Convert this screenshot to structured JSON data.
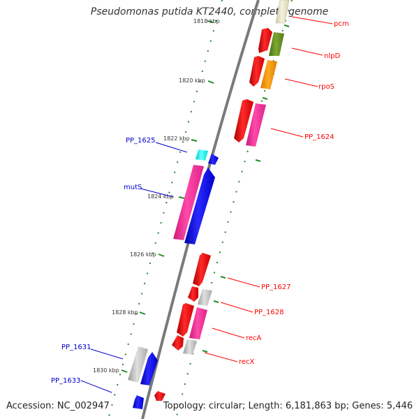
{
  "title": "Pseudomonas putida KT2440, complete genome",
  "accession": "Accession: NC_002947",
  "topology": "Topology: circular; Length: 6,181,863 bp; Genes: 5,446",
  "ticks": [
    "1818 kbp",
    "1820 kbp",
    "1822 kbp",
    "1824 kbp",
    "1826 kbp",
    "1828 kbp",
    "1830 kbp"
  ],
  "genes": [
    {
      "label": "pcm",
      "color": "#ff0000"
    },
    {
      "label": "nlpD",
      "color": "#ff0000"
    },
    {
      "label": "rpoS",
      "color": "#ff0000"
    },
    {
      "label": "PP_1624",
      "color": "#ff0000"
    },
    {
      "label": "PP_1625",
      "color": "#0000cc"
    },
    {
      "label": "mutS",
      "color": "#0000cc"
    },
    {
      "label": "PP_1627",
      "color": "#ff0000"
    },
    {
      "label": "PP_1628",
      "color": "#ff0000"
    },
    {
      "label": "recA",
      "color": "#ff0000"
    },
    {
      "label": "recX",
      "color": "#ff0000"
    },
    {
      "label": "PP_1631",
      "color": "#0000cc"
    },
    {
      "label": "PP_1633",
      "color": "#0000cc"
    }
  ],
  "colors": {
    "backbone": "#888888",
    "ticks": "#228b22",
    "red": "#ff0000",
    "blue": "#0000ff",
    "magenta": "#ff3399",
    "olive": "#6b8e23",
    "orange": "#ff9900",
    "grey": "#c0c0c0",
    "cyan": "#00ffff",
    "beige": "#e8e4c8"
  }
}
